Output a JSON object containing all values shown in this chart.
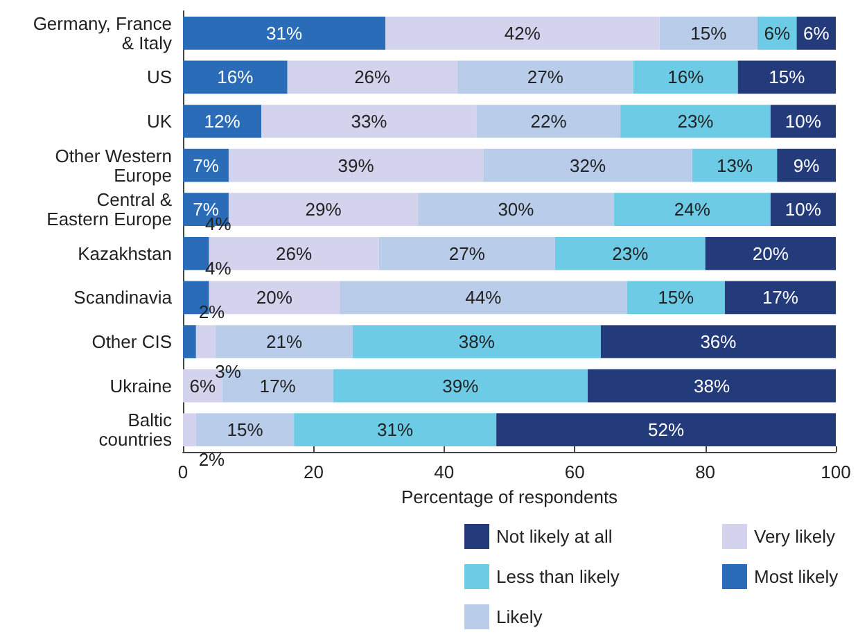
{
  "chart_data": {
    "type": "bar",
    "orientation": "horizontal",
    "stacked": true,
    "xlabel": "Percentage of respondents",
    "categories": [
      "Germany, France\n& Italy",
      "US",
      "UK",
      "Other Western\nEurope",
      "Central &\nEastern Europe",
      "Kazakhstan",
      "Scandinavia",
      "Other CIS",
      "Ukraine",
      "Baltic\ncountries"
    ],
    "series": [
      {
        "name": "Most likely",
        "color": "#2a6cb7",
        "values": [
          31,
          16,
          12,
          7,
          7,
          4,
          4,
          2,
          0,
          0
        ],
        "value_labels": [
          "31%",
          "16%",
          "12%",
          "7%",
          "7%",
          "4%",
          "4%",
          "2%",
          null,
          null
        ]
      },
      {
        "name": "Very likely",
        "color": "#d3d3ee",
        "values": [
          42,
          26,
          33,
          39,
          29,
          26,
          20,
          3,
          6,
          2
        ],
        "value_labels": [
          "42%",
          "26%",
          "33%",
          "39%",
          "29%",
          "26%",
          "20%",
          "3%",
          "6%",
          "2%"
        ]
      },
      {
        "name": "Likely",
        "color": "#b9cdea",
        "values": [
          15,
          27,
          22,
          32,
          30,
          27,
          44,
          21,
          17,
          15
        ],
        "value_labels": [
          "15%",
          "27%",
          "22%",
          "32%",
          "30%",
          "27%",
          "44%",
          "21%",
          "17%",
          "15%"
        ]
      },
      {
        "name": "Less than likely",
        "color": "#6dcbe6",
        "values": [
          6,
          16,
          23,
          13,
          24,
          23,
          15,
          38,
          39,
          31
        ],
        "value_labels": [
          "6%",
          "16%",
          "23%",
          "13%",
          "24%",
          "23%",
          "15%",
          "38%",
          "39%",
          "31%"
        ]
      },
      {
        "name": "Not likely at all",
        "color": "#233a7b",
        "values": [
          6,
          15,
          10,
          9,
          10,
          20,
          17,
          36,
          38,
          52
        ],
        "value_labels": [
          "6%",
          "15%",
          "10%",
          "9%",
          "10%",
          "20%",
          "17%",
          "36%",
          "38%",
          "52%"
        ]
      }
    ],
    "xlim": [
      0,
      100
    ],
    "xticks": [
      0,
      20,
      40,
      60,
      80,
      100
    ],
    "grid": false,
    "legend": "bottom right"
  }
}
